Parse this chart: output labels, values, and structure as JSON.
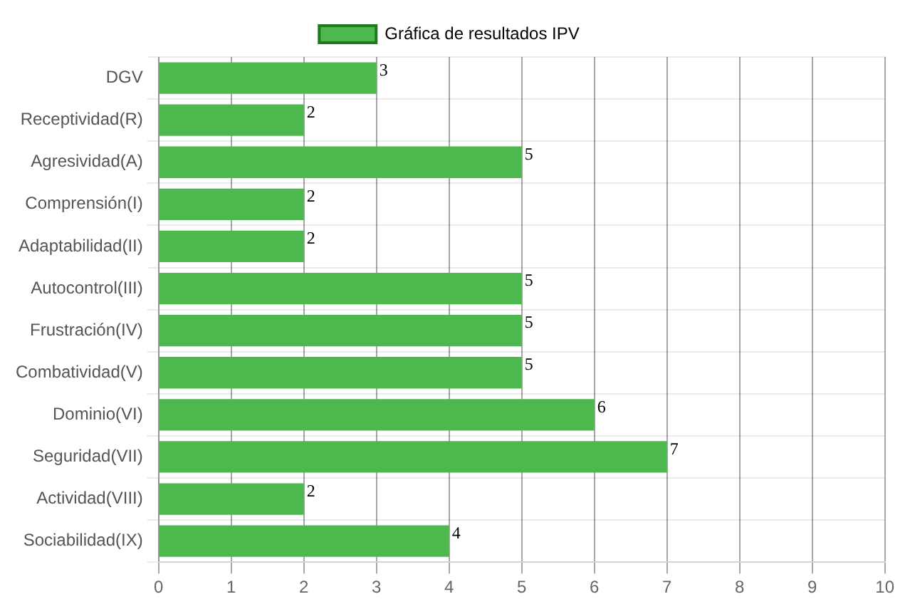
{
  "chart_data": {
    "type": "bar",
    "orientation": "horizontal",
    "categories": [
      "DGV",
      "Receptividad(R)",
      "Agresividad(A)",
      "Comprensión(I)",
      "Adaptabilidad(II)",
      "Autocontrol(III)",
      "Frustración(IV)",
      "Combatividad(V)",
      "Dominio(VI)",
      "Seguridad(VII)",
      "Actividad(VIII)",
      "Sociabilidad(IX)"
    ],
    "series": [
      {
        "name": "Gráfica de resultados IPV",
        "color": "#4db84d",
        "values": [
          3,
          2,
          5,
          2,
          2,
          5,
          5,
          5,
          6,
          7,
          2,
          4
        ]
      }
    ],
    "xlim": [
      0,
      10
    ],
    "xticks": [
      0,
      1,
      2,
      3,
      4,
      5,
      6,
      7,
      8,
      9,
      10
    ],
    "grid": true,
    "legend": "top",
    "data_labels": true
  }
}
